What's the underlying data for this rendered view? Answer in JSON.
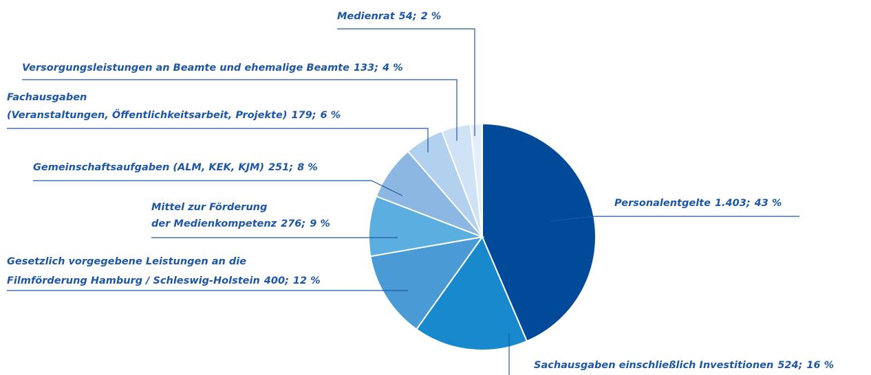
{
  "chart_data": {
    "type": "pie",
    "categories": [
      [
        "Personalentgelte"
      ],
      [
        "Sachausgaben einschließlich Investitionen"
      ],
      [
        "Gesetzlich vorgegebene Leistungen an die",
        "Filmförderung Hamburg / Schleswig-Holstein"
      ],
      [
        "Mittel zur Förderung",
        "der Medienkompetenz"
      ],
      [
        "Gemeinschaftsaufgaben (ALM, KEK, KJM)"
      ],
      [
        "Fachausgaben",
        "(Veranstaltungen, Öffentlichkeitsarbeit, Projekte)"
      ],
      [
        "Versorgungsleistungen an Beamte und ehemalige Beamte"
      ],
      [
        "Medienrat"
      ]
    ],
    "values": [
      1403,
      524,
      400,
      276,
      251,
      179,
      133,
      54
    ],
    "value_labels": [
      "1.403",
      "524",
      "400",
      "276",
      "251",
      "179",
      "133",
      "54"
    ],
    "separator": ";",
    "percents": [
      43,
      16,
      12,
      9,
      8,
      6,
      4,
      2
    ],
    "percent_labels": [
      "43 %",
      "16 %",
      "12 %",
      "9 %",
      "8 %",
      "6 %",
      "4 %",
      "2 %"
    ],
    "colors": [
      "#004a99",
      "#1789cc",
      "#4a9ad5",
      "#5aaee0",
      "#8cb7e2",
      "#b2d1ef",
      "#d0e3f6",
      "#e4eefa"
    ]
  }
}
